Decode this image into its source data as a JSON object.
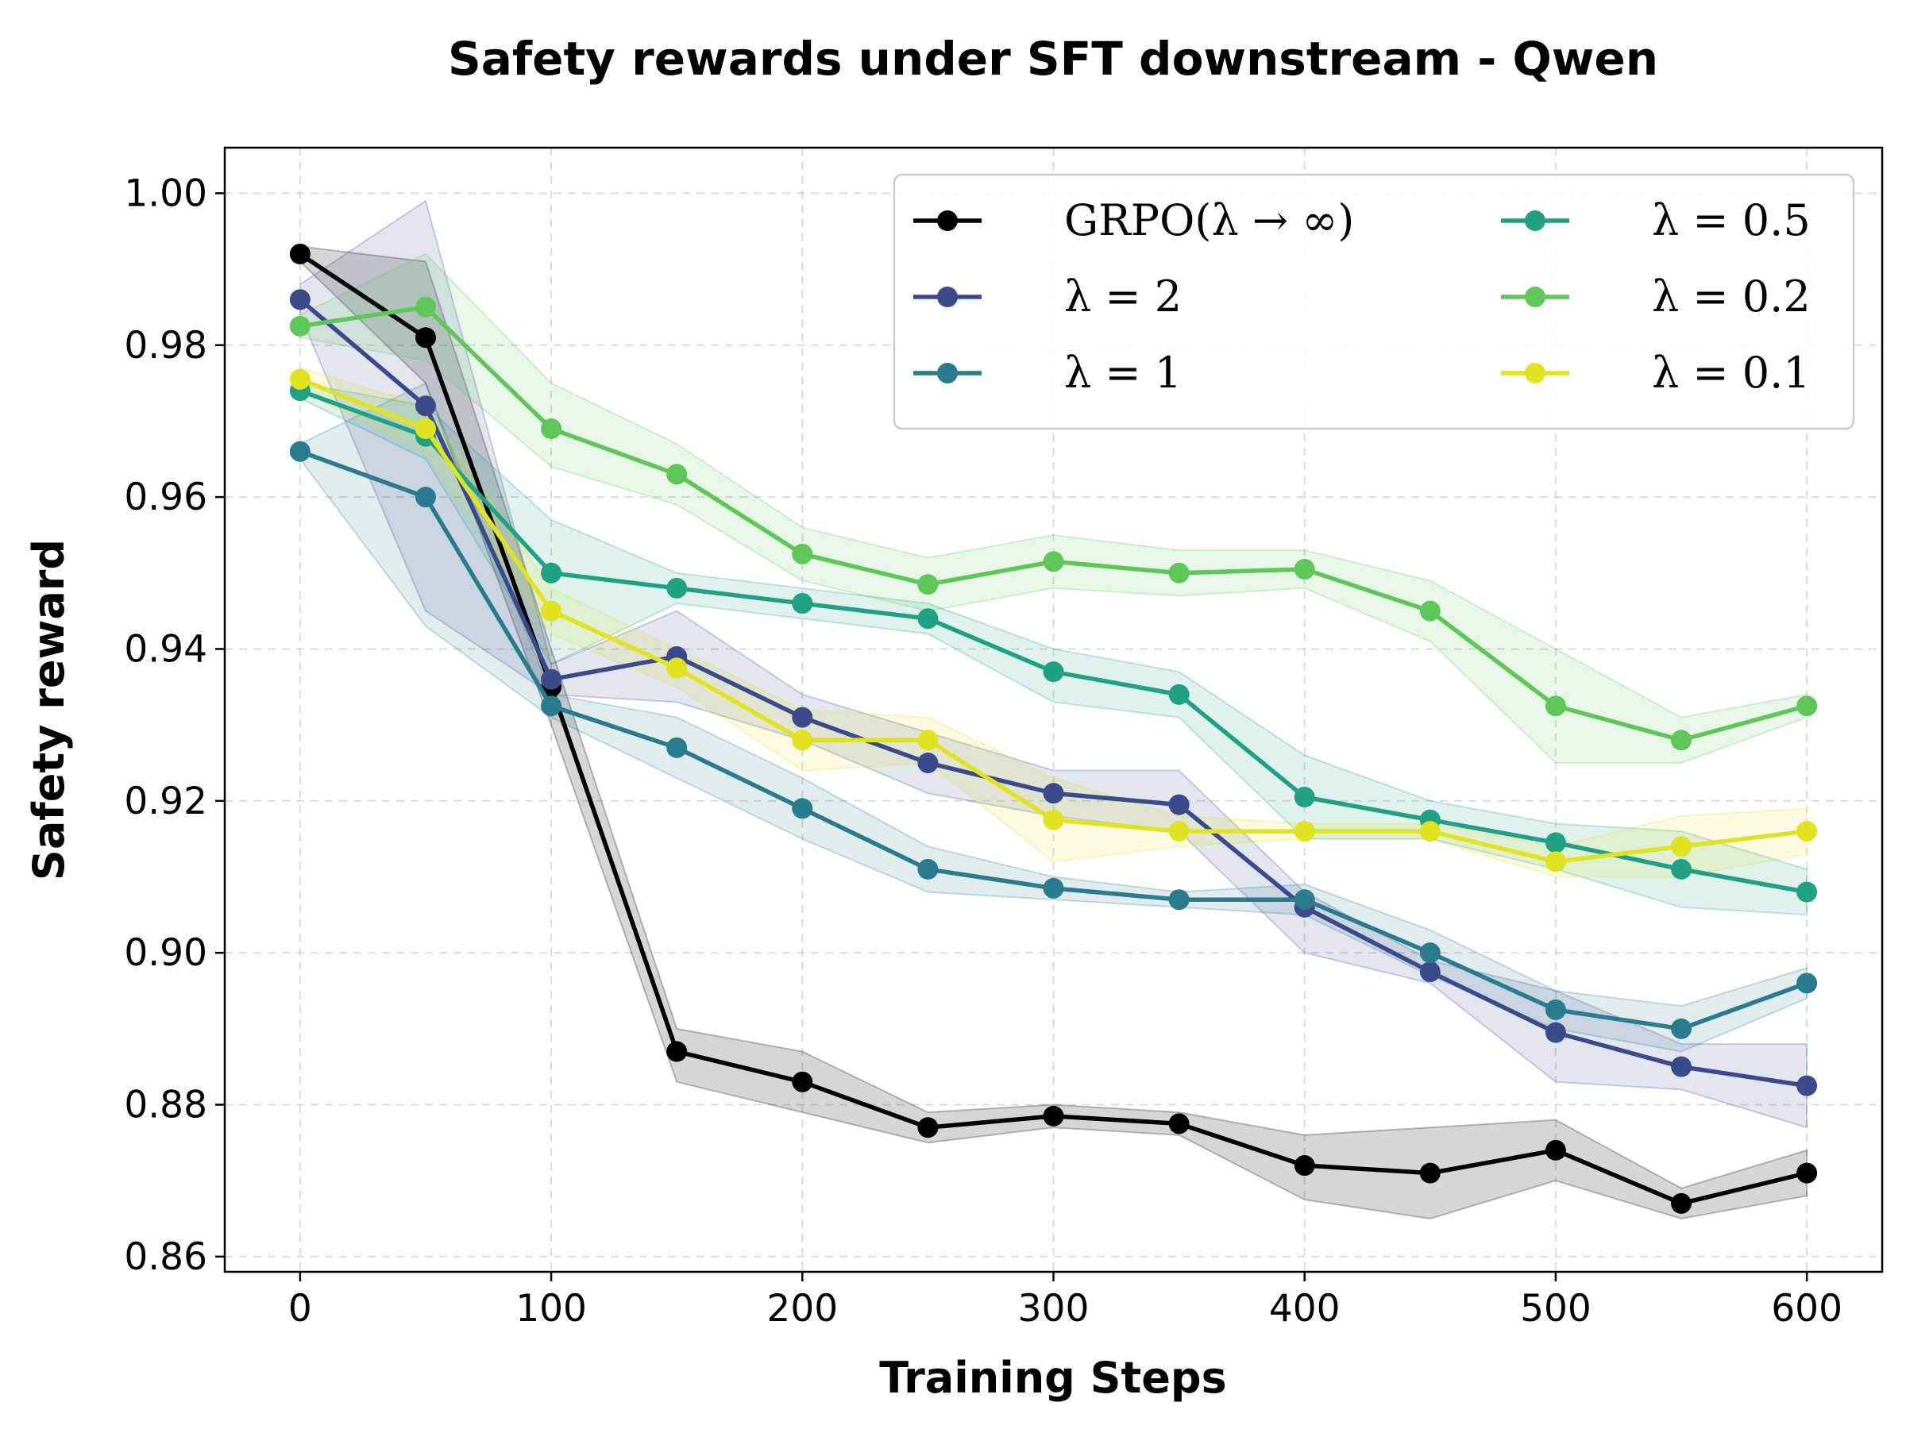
{
  "chart_data": {
    "type": "line",
    "title": "Safety rewards under SFT downstream - Qwen",
    "xlabel": "Training Steps",
    "ylabel": "Safety reward",
    "xlim": [
      -30,
      630
    ],
    "ylim": [
      0.858,
      1.006
    ],
    "x_ticks": [
      0,
      100,
      200,
      300,
      400,
      500,
      600
    ],
    "x_tick_labels": [
      "0",
      "100",
      "200",
      "300",
      "400",
      "500",
      "600"
    ],
    "y_ticks": [
      0.86,
      0.88,
      0.9,
      0.92,
      0.94,
      0.96,
      0.98,
      1.0
    ],
    "y_tick_labels": [
      "0.86",
      "0.88",
      "0.90",
      "0.92",
      "0.94",
      "0.96",
      "0.98",
      "1.00"
    ],
    "grid": true,
    "legend_position": "top-right",
    "legend_columns": 2,
    "x": [
      0,
      50,
      100,
      150,
      200,
      250,
      300,
      350,
      400,
      450,
      500,
      550,
      600
    ],
    "series": [
      {
        "name": "GRPO(λ → ∞)",
        "color": "#000000",
        "values": [
          0.992,
          0.981,
          0.935,
          0.887,
          0.883,
          0.877,
          0.8785,
          0.8775,
          0.872,
          0.871,
          0.874,
          0.867,
          0.871
        ],
        "lower": [
          0.991,
          0.975,
          0.93,
          0.883,
          0.879,
          0.875,
          0.877,
          0.876,
          0.8675,
          0.865,
          0.87,
          0.865,
          0.868
        ],
        "upper": [
          0.993,
          0.991,
          0.94,
          0.89,
          0.887,
          0.879,
          0.88,
          0.879,
          0.876,
          0.877,
          0.878,
          0.869,
          0.874
        ]
      },
      {
        "name": "λ = 2",
        "color": "#3b4a8b",
        "values": [
          0.986,
          0.972,
          0.936,
          0.939,
          0.931,
          0.925,
          0.921,
          0.9195,
          0.906,
          0.8975,
          0.8895,
          0.885,
          0.8825
        ],
        "lower": [
          0.984,
          0.945,
          0.934,
          0.933,
          0.928,
          0.921,
          0.918,
          0.916,
          0.9,
          0.896,
          0.883,
          0.882,
          0.877
        ],
        "upper": [
          0.988,
          0.999,
          0.938,
          0.945,
          0.934,
          0.929,
          0.924,
          0.924,
          0.908,
          0.899,
          0.895,
          0.888,
          0.888
        ]
      },
      {
        "name": "λ = 1",
        "color": "#2a7b8e",
        "values": [
          0.966,
          0.96,
          0.9325,
          0.927,
          0.919,
          0.911,
          0.9085,
          0.907,
          0.907,
          0.9,
          0.8925,
          0.89,
          0.896
        ],
        "lower": [
          0.965,
          0.943,
          0.931,
          0.923,
          0.915,
          0.908,
          0.907,
          0.906,
          0.905,
          0.897,
          0.89,
          0.887,
          0.894
        ],
        "upper": [
          0.967,
          0.975,
          0.934,
          0.931,
          0.923,
          0.914,
          0.91,
          0.908,
          0.909,
          0.903,
          0.895,
          0.893,
          0.898
        ]
      },
      {
        "name": "λ = 0.5",
        "color": "#21a184",
        "values": [
          0.974,
          0.968,
          0.95,
          0.948,
          0.946,
          0.944,
          0.937,
          0.934,
          0.9205,
          0.9175,
          0.9145,
          0.911,
          0.908
        ],
        "lower": [
          0.973,
          0.965,
          0.938,
          0.946,
          0.944,
          0.942,
          0.933,
          0.931,
          0.915,
          0.915,
          0.911,
          0.906,
          0.905
        ],
        "upper": [
          0.975,
          0.972,
          0.957,
          0.95,
          0.948,
          0.946,
          0.94,
          0.937,
          0.926,
          0.92,
          0.917,
          0.916,
          0.911
        ]
      },
      {
        "name": "λ = 0.2",
        "color": "#5fc75a",
        "values": [
          0.9825,
          0.985,
          0.969,
          0.963,
          0.9525,
          0.9485,
          0.9515,
          0.95,
          0.9505,
          0.945,
          0.9325,
          0.928,
          0.9325
        ],
        "lower": [
          0.981,
          0.978,
          0.964,
          0.959,
          0.949,
          0.945,
          0.948,
          0.947,
          0.948,
          0.941,
          0.925,
          0.925,
          0.931
        ],
        "upper": [
          0.984,
          0.992,
          0.975,
          0.967,
          0.956,
          0.952,
          0.955,
          0.953,
          0.953,
          0.949,
          0.94,
          0.931,
          0.934
        ]
      },
      {
        "name": "λ = 0.1",
        "color": "#dfe322",
        "values": [
          0.9755,
          0.969,
          0.945,
          0.9375,
          0.928,
          0.928,
          0.9175,
          0.916,
          0.916,
          0.916,
          0.912,
          0.914,
          0.916
        ],
        "lower": [
          0.974,
          0.966,
          0.942,
          0.935,
          0.924,
          0.925,
          0.912,
          0.914,
          0.915,
          0.915,
          0.91,
          0.91,
          0.913
        ],
        "upper": [
          0.977,
          0.972,
          0.948,
          0.94,
          0.932,
          0.931,
          0.923,
          0.918,
          0.917,
          0.917,
          0.914,
          0.918,
          0.919
        ]
      }
    ]
  }
}
